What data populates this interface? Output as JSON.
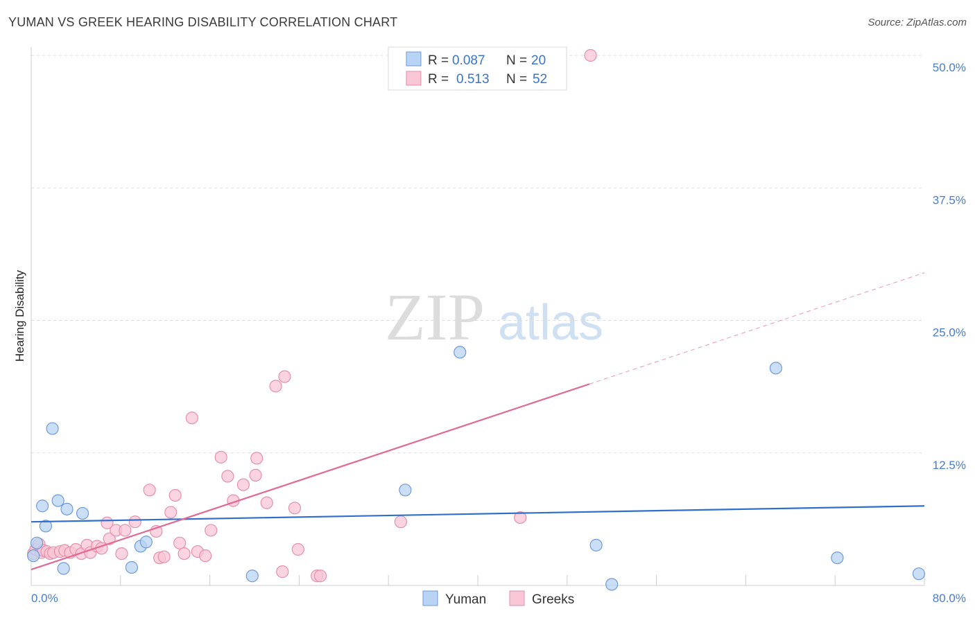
{
  "header": {
    "title": "YUMAN VS GREEK HEARING DISABILITY CORRELATION CHART",
    "source": "Source: ZipAtlas.com"
  },
  "watermark": {
    "zip": "ZIP",
    "atlas": "atlas"
  },
  "colors": {
    "yuman_fill": "#b8d3f3",
    "yuman_stroke": "#6f9ad6",
    "yuman_line": "#2f6fcb",
    "greeks_fill": "#f8c6d5",
    "greeks_stroke": "#e68fab",
    "greeks_line": "#e06a93",
    "tick_text": "#4a7cc9",
    "grid": "#dddddd"
  },
  "legend": {
    "items": [
      {
        "r_label": "R =",
        "r_value": "0.087",
        "n_label": "N =",
        "n_value": "20"
      },
      {
        "r_label": "R =",
        "r_value": "0.513",
        "n_label": "N =",
        "n_value": "52"
      }
    ]
  },
  "chart_data": {
    "type": "scatter",
    "title": "YUMAN VS GREEK HEARING DISABILITY CORRELATION CHART",
    "xlabel": "",
    "ylabel": "Hearing Disability",
    "xlim": [
      0,
      80
    ],
    "ylim": [
      0,
      50
    ],
    "x_tick_labels": [
      {
        "value": 0,
        "label": "0.0%"
      },
      {
        "value": 80,
        "label": "80.0%"
      }
    ],
    "y_tick_labels": [
      {
        "value": 12.5,
        "label": "12.5%"
      },
      {
        "value": 25,
        "label": "25.0%"
      },
      {
        "value": 37.5,
        "label": "37.5%"
      },
      {
        "value": 50,
        "label": "50.0%"
      }
    ],
    "legend_position": "top-center",
    "series": [
      {
        "name": "Yuman",
        "R": 0.087,
        "N": 20,
        "trend": {
          "x": [
            0,
            80
          ],
          "y": [
            6.0,
            7.5
          ],
          "dashed_from": null
        },
        "points": [
          [
            0.2,
            2.8
          ],
          [
            0.5,
            4.0
          ],
          [
            1.0,
            7.5
          ],
          [
            1.3,
            5.6
          ],
          [
            1.9,
            14.8
          ],
          [
            2.4,
            8.0
          ],
          [
            2.9,
            1.6
          ],
          [
            3.2,
            7.2
          ],
          [
            4.6,
            6.8
          ],
          [
            9.0,
            1.7
          ],
          [
            9.8,
            3.7
          ],
          [
            10.3,
            4.1
          ],
          [
            19.8,
            0.9
          ],
          [
            33.5,
            9.0
          ],
          [
            38.4,
            22.0
          ],
          [
            50.6,
            3.8
          ],
          [
            52.0,
            0.1
          ],
          [
            66.7,
            20.5
          ],
          [
            72.2,
            2.6
          ],
          [
            79.5,
            1.1
          ]
        ]
      },
      {
        "name": "Greeks",
        "R": 0.513,
        "N": 52,
        "trend": {
          "x": [
            0,
            80
          ],
          "y": [
            1.5,
            29.5
          ],
          "dashed_from": 50
        },
        "points": [
          [
            0.2,
            3.0
          ],
          [
            0.4,
            3.4
          ],
          [
            0.7,
            3.9
          ],
          [
            0.9,
            3.1
          ],
          [
            1.1,
            3.3
          ],
          [
            1.4,
            3.2
          ],
          [
            1.7,
            3.0
          ],
          [
            2.0,
            3.1
          ],
          [
            2.6,
            3.2
          ],
          [
            3.0,
            3.3
          ],
          [
            3.5,
            3.1
          ],
          [
            4.0,
            3.4
          ],
          [
            4.5,
            3.0
          ],
          [
            5.0,
            3.8
          ],
          [
            5.3,
            3.1
          ],
          [
            5.9,
            3.7
          ],
          [
            6.3,
            3.5
          ],
          [
            6.8,
            5.9
          ],
          [
            7.0,
            4.4
          ],
          [
            7.6,
            5.2
          ],
          [
            8.1,
            3.0
          ],
          [
            8.4,
            5.2
          ],
          [
            9.3,
            6.0
          ],
          [
            10.6,
            9.0
          ],
          [
            11.2,
            5.1
          ],
          [
            11.5,
            2.6
          ],
          [
            11.9,
            2.7
          ],
          [
            12.5,
            6.9
          ],
          [
            12.9,
            8.5
          ],
          [
            13.3,
            4.0
          ],
          [
            13.7,
            3.0
          ],
          [
            14.4,
            15.8
          ],
          [
            14.9,
            3.2
          ],
          [
            15.6,
            2.8
          ],
          [
            16.1,
            5.2
          ],
          [
            17.0,
            12.1
          ],
          [
            17.6,
            10.3
          ],
          [
            18.1,
            8.0
          ],
          [
            19.0,
            9.5
          ],
          [
            20.1,
            10.4
          ],
          [
            20.2,
            12.0
          ],
          [
            21.1,
            7.8
          ],
          [
            21.9,
            18.8
          ],
          [
            22.5,
            1.3
          ],
          [
            22.7,
            19.7
          ],
          [
            23.6,
            7.3
          ],
          [
            23.9,
            3.4
          ],
          [
            25.6,
            0.9
          ],
          [
            25.9,
            0.9
          ],
          [
            33.1,
            6.0
          ],
          [
            43.8,
            6.4
          ],
          [
            50.1,
            50.0
          ]
        ]
      }
    ]
  },
  "bottom_legend": {
    "items": [
      "Yuman",
      "Greeks"
    ]
  }
}
